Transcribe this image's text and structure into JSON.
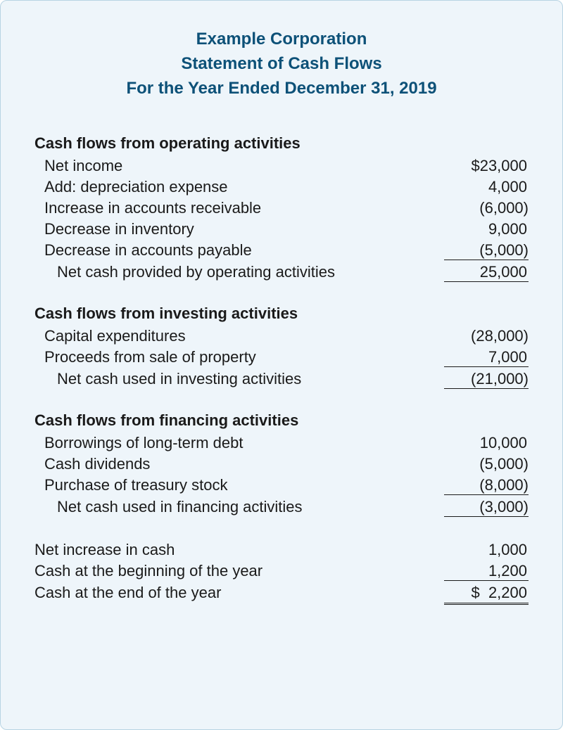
{
  "colors": {
    "card_background": "#eef5fa",
    "card_border": "#b8d4e3",
    "header_text": "#0d5178",
    "body_text": "#1a1a1a"
  },
  "typography": {
    "header_fontsize": 24,
    "body_fontsize": 22,
    "header_fontweight": "bold",
    "section_title_fontweight": "bold"
  },
  "header": {
    "company": "Example Corporation",
    "title": "Statement of Cash Flows",
    "period": "For the Year Ended December 31, 2019"
  },
  "operating": {
    "title": "Cash flows from operating activities",
    "items": [
      {
        "label": "Net income",
        "value": "$23,000"
      },
      {
        "label": "Add: depreciation expense",
        "value": "4,000"
      },
      {
        "label": "Increase in accounts receivable",
        "value": "(6,000)"
      },
      {
        "label": "Decrease in inventory",
        "value": "9,000"
      },
      {
        "label": "Decrease in accounts payable",
        "value": "(5,000)"
      }
    ],
    "subtotal_label": "Net cash provided by operating activities",
    "subtotal_value": "25,000"
  },
  "investing": {
    "title": "Cash flows from investing activities",
    "items": [
      {
        "label": "Capital expenditures",
        "value": "(28,000)"
      },
      {
        "label": "Proceeds from sale of property",
        "value": "7,000"
      }
    ],
    "subtotal_label": "Net cash used in investing activities",
    "subtotal_value": "(21,000)"
  },
  "financing": {
    "title": "Cash flows from financing activities",
    "items": [
      {
        "label": "Borrowings of long-term debt",
        "value": "10,000"
      },
      {
        "label": "Cash dividends",
        "value": "(5,000)"
      },
      {
        "label": "Purchase of treasury stock",
        "value": "(8,000)"
      }
    ],
    "subtotal_label": "Net cash used in financing activities",
    "subtotal_value": "(3,000)"
  },
  "summary": {
    "net_increase_label": "Net increase in cash",
    "net_increase_value": "1,000",
    "beginning_label": "Cash at the beginning of the year",
    "beginning_value": "1,200",
    "ending_label": "Cash at the end of the year",
    "ending_value": "$  2,200"
  }
}
